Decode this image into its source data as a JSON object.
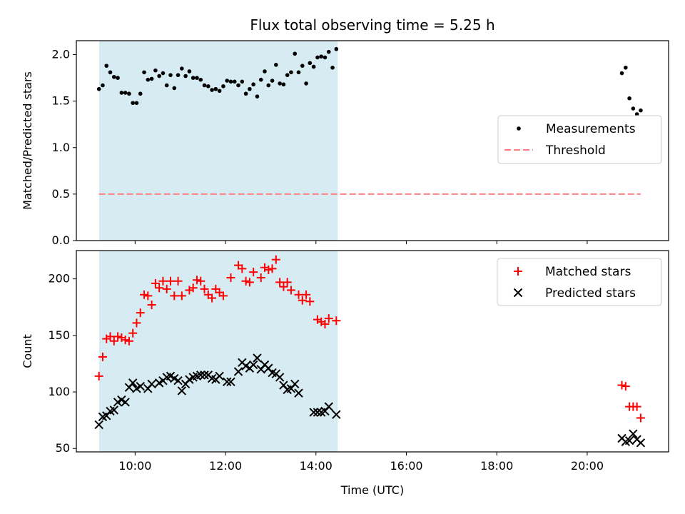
{
  "chart_data": [
    {
      "type": "scatter",
      "title": "Flux total observing time = 5.25 h",
      "xlabel": "",
      "ylabel": "Matched/Predicted stars",
      "ylim": [
        0,
        2.15
      ],
      "yticks": [
        "0.0",
        "0.5",
        "1.0",
        "1.5",
        "2.0"
      ],
      "xlim_hours": [
        8.7,
        21.8
      ],
      "xticks": [
        "10:00",
        "12:00",
        "14:00",
        "16:00",
        "18:00",
        "20:00"
      ],
      "shaded_interval": [
        "09:13",
        "14:28"
      ],
      "legend_position": "center-right",
      "series": [
        {
          "name": "Measurements",
          "marker": "dot",
          "color": "#000000",
          "points": [
            [
              "09:12",
              1.63
            ],
            [
              "09:17",
              1.67
            ],
            [
              "09:22",
              1.88
            ],
            [
              "09:27",
              1.81
            ],
            [
              "09:32",
              1.76
            ],
            [
              "09:37",
              1.75
            ],
            [
              "09:42",
              1.59
            ],
            [
              "09:47",
              1.59
            ],
            [
              "09:52",
              1.58
            ],
            [
              "09:57",
              1.48
            ],
            [
              "10:02",
              1.48
            ],
            [
              "10:07",
              1.58
            ],
            [
              "10:12",
              1.81
            ],
            [
              "10:17",
              1.73
            ],
            [
              "10:22",
              1.74
            ],
            [
              "10:27",
              1.83
            ],
            [
              "10:32",
              1.77
            ],
            [
              "10:37",
              1.8
            ],
            [
              "10:42",
              1.67
            ],
            [
              "10:47",
              1.78
            ],
            [
              "10:52",
              1.64
            ],
            [
              "10:57",
              1.78
            ],
            [
              "11:02",
              1.85
            ],
            [
              "11:07",
              1.77
            ],
            [
              "11:12",
              1.82
            ],
            [
              "11:17",
              1.75
            ],
            [
              "11:22",
              1.75
            ],
            [
              "11:27",
              1.73
            ],
            [
              "11:32",
              1.67
            ],
            [
              "11:37",
              1.66
            ],
            [
              "11:42",
              1.62
            ],
            [
              "11:47",
              1.63
            ],
            [
              "11:52",
              1.61
            ],
            [
              "11:57",
              1.66
            ],
            [
              "12:02",
              1.72
            ],
            [
              "12:07",
              1.71
            ],
            [
              "12:12",
              1.71
            ],
            [
              "12:17",
              1.67
            ],
            [
              "12:22",
              1.71
            ],
            [
              "12:27",
              1.58
            ],
            [
              "12:32",
              1.63
            ],
            [
              "12:37",
              1.68
            ],
            [
              "12:42",
              1.55
            ],
            [
              "12:47",
              1.73
            ],
            [
              "12:52",
              1.82
            ],
            [
              "12:57",
              1.67
            ],
            [
              "13:02",
              1.72
            ],
            [
              "13:07",
              1.89
            ],
            [
              "13:12",
              1.69
            ],
            [
              "13:17",
              1.68
            ],
            [
              "13:22",
              1.78
            ],
            [
              "13:27",
              1.81
            ],
            [
              "13:32",
              2.01
            ],
            [
              "13:37",
              1.81
            ],
            [
              "13:42",
              1.88
            ],
            [
              "13:47",
              1.69
            ],
            [
              "13:52",
              1.91
            ],
            [
              "13:57",
              1.87
            ],
            [
              "14:02",
              1.97
            ],
            [
              "14:07",
              1.98
            ],
            [
              "14:12",
              1.97
            ],
            [
              "14:17",
              2.03
            ],
            [
              "14:22",
              1.86
            ],
            [
              "14:27",
              2.06
            ],
            [
              "20:46",
              1.8
            ],
            [
              "20:51",
              1.86
            ],
            [
              "20:56",
              1.53
            ],
            [
              "21:01",
              1.42
            ],
            [
              "21:06",
              1.36
            ],
            [
              "21:11",
              1.4
            ]
          ]
        },
        {
          "name": "Threshold",
          "marker": "dashed-line",
          "color": "#ff7f7f",
          "points": [
            [
              "09:12",
              0.5
            ],
            [
              "21:11",
              0.5
            ]
          ]
        }
      ]
    },
    {
      "type": "scatter",
      "title": "",
      "xlabel": "Time (UTC)",
      "ylabel": "Count",
      "ylim": [
        47,
        225
      ],
      "yticks": [
        "50",
        "100",
        "150",
        "200"
      ],
      "xlim_hours": [
        8.7,
        21.8
      ],
      "xticks": [
        "10:00",
        "12:00",
        "14:00",
        "16:00",
        "18:00",
        "20:00"
      ],
      "shaded_interval": [
        "09:13",
        "14:28"
      ],
      "legend_position": "top-right",
      "series": [
        {
          "name": "Matched stars",
          "marker": "plus",
          "color": "#ff0000",
          "values": [
            114,
            131,
            147,
            149,
            145,
            149,
            148,
            146,
            145,
            152,
            161,
            170,
            186,
            185,
            177,
            196,
            192,
            198,
            191,
            198,
            185,
            198,
            185,
            190,
            192,
            199,
            198,
            191,
            186,
            183,
            191,
            188,
            185,
            201,
            212,
            209,
            198,
            197,
            206,
            201,
            210,
            208,
            209,
            217,
            197,
            193,
            197,
            190,
            186,
            181,
            186,
            180,
            164,
            162,
            160,
            165,
            163,
            106,
            105,
            87,
            87,
            87,
            77
          ],
          "times": [
            "09:12",
            "09:17",
            "09:22",
            "09:27",
            "09:32",
            "09:37",
            "09:42",
            "09:47",
            "09:52",
            "09:57",
            "10:02",
            "10:07",
            "10:12",
            "10:17",
            "10:22",
            "10:27",
            "10:32",
            "10:37",
            "10:42",
            "10:47",
            "10:52",
            "10:57",
            "11:02",
            "11:12",
            "11:17",
            "11:22",
            "11:27",
            "11:32",
            "11:37",
            "11:42",
            "11:47",
            "11:52",
            "11:57",
            "12:07",
            "12:17",
            "12:22",
            "12:27",
            "12:32",
            "12:37",
            "12:47",
            "12:52",
            "12:57",
            "13:02",
            "13:07",
            "13:12",
            "13:17",
            "13:22",
            "13:27",
            "13:37",
            "13:42",
            "13:47",
            "13:52",
            "14:02",
            "14:07",
            "14:12",
            "14:17",
            "14:27",
            "20:46",
            "20:51",
            "20:56",
            "21:01",
            "21:06",
            "21:11"
          ]
        },
        {
          "name": "Predicted stars",
          "marker": "x",
          "color": "#000000",
          "values": [
            71,
            78,
            79,
            83,
            84,
            91,
            93,
            91,
            104,
            108,
            103,
            105,
            103,
            107,
            108,
            110,
            113,
            114,
            112,
            110,
            101,
            107,
            111,
            113,
            114,
            115,
            115,
            115,
            112,
            111,
            114,
            109,
            109,
            118,
            126,
            123,
            121,
            124,
            130,
            120,
            124,
            121,
            117,
            116,
            113,
            106,
            102,
            103,
            107,
            99,
            82,
            82,
            82,
            83,
            87,
            80,
            59,
            56,
            57,
            63,
            58,
            55
          ],
          "times": [
            "09:12",
            "09:17",
            "09:22",
            "09:27",
            "09:32",
            "09:37",
            "09:42",
            "09:47",
            "09:52",
            "09:57",
            "10:02",
            "10:07",
            "10:17",
            "10:22",
            "10:32",
            "10:37",
            "10:42",
            "10:47",
            "10:52",
            "10:57",
            "11:02",
            "11:07",
            "11:12",
            "11:17",
            "11:22",
            "11:27",
            "11:32",
            "11:37",
            "11:42",
            "11:47",
            "11:52",
            "12:02",
            "12:07",
            "12:17",
            "12:22",
            "12:27",
            "12:32",
            "12:37",
            "12:42",
            "12:47",
            "12:52",
            "12:57",
            "13:02",
            "13:07",
            "13:12",
            "13:17",
            "13:22",
            "13:27",
            "13:32",
            "13:37",
            "13:57",
            "14:02",
            "14:07",
            "14:12",
            "14:17",
            "14:27",
            "20:46",
            "20:51",
            "20:56",
            "21:01",
            "21:06",
            "21:11"
          ]
        }
      ]
    }
  ]
}
